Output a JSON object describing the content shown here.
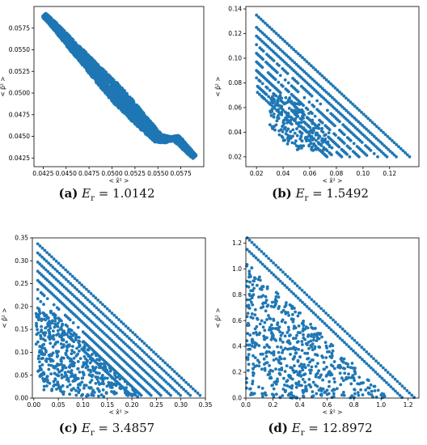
{
  "figure": {
    "captions": [
      {
        "letter": "(a)",
        "var": "E",
        "sub": "r",
        "eq": "= 1.0142"
      },
      {
        "letter": "(b)",
        "var": "E",
        "sub": "r",
        "eq": "= 1.5492"
      },
      {
        "letter": "(c)",
        "var": "E",
        "sub": "r",
        "eq": "= 3.4857"
      },
      {
        "letter": "(d)",
        "var": "E",
        "sub": "r",
        "eq": "= 12.8972"
      }
    ]
  },
  "chart_data": [
    {
      "type": "scatter",
      "xlabel": "< x̂² >",
      "ylabel": "< p̂² >",
      "xlim": [
        0.0415,
        0.06
      ],
      "ylim": [
        0.0415,
        0.06
      ],
      "xticks": [
        "0.0425",
        "0.0450",
        "0.0475",
        "0.0500",
        "0.0525",
        "0.0550",
        "0.0575"
      ],
      "xtick_values": [
        0.0425,
        0.045,
        0.0475,
        0.05,
        0.0525,
        0.055,
        0.0575
      ],
      "yticks": [
        "0.0425",
        "0.0450",
        "0.0475",
        "0.0500",
        "0.0525",
        "0.0550",
        "0.0575"
      ],
      "ytick_values": [
        0.0425,
        0.045,
        0.0475,
        0.05,
        0.0525,
        0.055,
        0.0575
      ],
      "color": "#1f77b4",
      "series": [
        {
          "x": [
            0.0426,
            0.043,
            0.044,
            0.045,
            0.046,
            0.047,
            0.048,
            0.049,
            0.05,
            0.051,
            0.052,
            0.053,
            0.054,
            0.055,
            0.056,
            0.057,
            0.058,
            0.059
          ],
          "y": [
            0.059,
            0.0586,
            0.0575,
            0.0563,
            0.0551,
            0.054,
            0.0528,
            0.0516,
            0.0505,
            0.0493,
            0.0482,
            0.047,
            0.0459,
            0.0448,
            0.0446,
            0.0448,
            0.0437,
            0.0426
          ]
        }
      ]
    },
    {
      "type": "scatter",
      "xlabel": "< x̂² >",
      "ylabel": "< p̂² >",
      "xlim": [
        0.012,
        0.142
      ],
      "ylim": [
        0.012,
        0.142
      ],
      "xticks": [
        "0.02",
        "0.04",
        "0.06",
        "0.08",
        "0.10",
        "0.12"
      ],
      "xtick_values": [
        0.02,
        0.04,
        0.06,
        0.08,
        0.1,
        0.12
      ],
      "yticks": [
        "0.02",
        "0.04",
        "0.06",
        "0.08",
        "0.10",
        "0.12",
        "0.14"
      ],
      "ytick_values": [
        0.02,
        0.04,
        0.06,
        0.08,
        0.1,
        0.12,
        0.14
      ],
      "color": "#1f77b4",
      "line_sums": [
        0.155,
        0.145,
        0.138,
        0.131,
        0.124,
        0.117,
        0.11,
        0.104,
        0.098,
        0.093
      ],
      "cloud": {
        "x_range": [
          0.03,
          0.075
        ],
        "y_range": [
          0.025,
          0.07
        ]
      }
    },
    {
      "type": "scatter",
      "xlabel": "< x̂² >",
      "ylabel": "< p̂² >",
      "xlim": [
        -0.003,
        0.35
      ],
      "ylim": [
        0.0,
        0.35
      ],
      "xticks": [
        "0.00",
        "0.05",
        "0.10",
        "0.15",
        "0.20",
        "0.25",
        "0.30",
        "0.35"
      ],
      "xtick_values": [
        0.0,
        0.05,
        0.1,
        0.15,
        0.2,
        0.25,
        0.3,
        0.35
      ],
      "yticks": [
        "0.00",
        "0.05",
        "0.10",
        "0.15",
        "0.20",
        "0.25",
        "0.30",
        "0.35"
      ],
      "ytick_values": [
        0.0,
        0.05,
        0.1,
        0.15,
        0.2,
        0.25,
        0.3,
        0.35
      ],
      "color": "#1f77b4",
      "line_sums": [
        0.345,
        0.325,
        0.305,
        0.285,
        0.265,
        0.245,
        0.225,
        0.205
      ],
      "cloud": {
        "x_range": [
          0.0,
          0.22
        ],
        "y_range": [
          0.0,
          0.19
        ]
      }
    },
    {
      "type": "scatter",
      "xlabel": "< x̂² >",
      "ylabel": "< p̂² >",
      "xlim": [
        0.0,
        1.28
      ],
      "ylim": [
        0.0,
        1.24
      ],
      "xticks": [
        "0.0",
        "0.2",
        "0.4",
        "0.6",
        "0.8",
        "1.0",
        "1.2"
      ],
      "xtick_values": [
        0.0,
        0.2,
        0.4,
        0.6,
        0.8,
        1.0,
        1.2
      ],
      "yticks": [
        "0.0",
        "0.2",
        "0.4",
        "0.6",
        "0.8",
        "1.0",
        "1.2"
      ],
      "ytick_values": [
        0.0,
        0.2,
        0.4,
        0.6,
        0.8,
        1.0,
        1.2
      ],
      "color": "#1f77b4",
      "line_sums": [
        1.25,
        1.16
      ],
      "cloud": {
        "x_range": [
          0.0,
          1.05
        ],
        "y_range": [
          0.0,
          1.05
        ]
      }
    }
  ]
}
